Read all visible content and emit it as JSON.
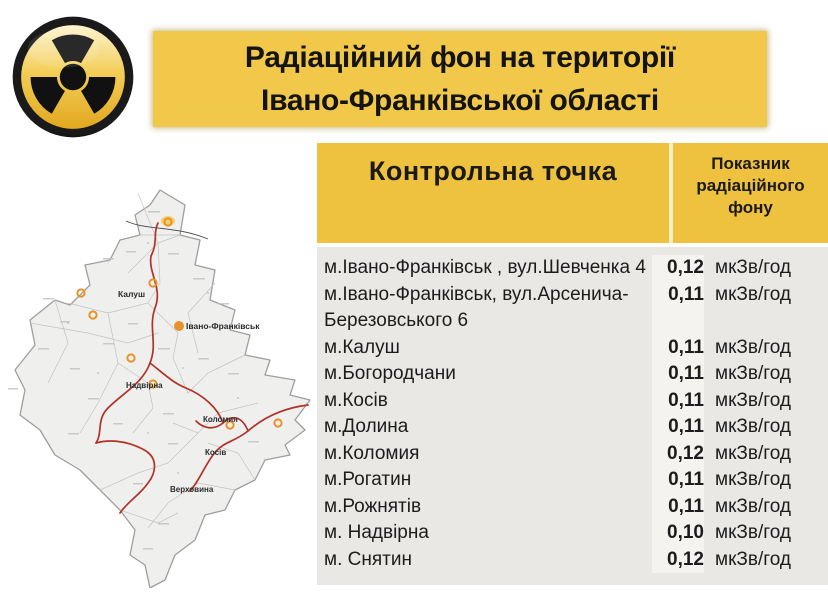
{
  "banner": {
    "title_line1": "Радіаційний фон на території",
    "title_line2": "Івано-Франківської області"
  },
  "icons": {
    "radiation": "radiation-trefoil-icon",
    "map_marker": "city-ring-marker"
  },
  "table": {
    "col1_header": "Контрольна точка",
    "col2_header": "Показник радіаційного фону",
    "rows": [
      {
        "point": "м.Івано-Франківськ , вул.Шевченка 4",
        "value": "0,12",
        "unit": "мкЗв/год"
      },
      {
        "point": "м.Івано-Франківськ, вул.Арсенича-Березовського 6",
        "value": "0,11",
        "unit": "мкЗв/год"
      },
      {
        "point": "м.Калуш",
        "value": "0,11",
        "unit": "мкЗв/год"
      },
      {
        "point": "м.Богородчани",
        "value": "0,11",
        "unit": "мкЗв/год"
      },
      {
        "point": "м.Косів",
        "value": "0,11",
        "unit": "мкЗв/год"
      },
      {
        "point": "м.Долина",
        "value": "0,11",
        "unit": "мкЗв/год"
      },
      {
        "point": "м.Коломия",
        "value": "0,12",
        "unit": "мкЗв/год"
      },
      {
        "point": "м.Рогатин",
        "value": "0,11",
        "unit": "мкЗв/год"
      },
      {
        "point": "м.Рожнятів",
        "value": "0,11",
        "unit": "мкЗв/год"
      },
      {
        "point": "м. Надвірна",
        "value": "0,10",
        "unit": "мкЗв/год"
      },
      {
        "point": "м. Снятин",
        "value": "0,12",
        "unit": "мкЗв/год"
      }
    ]
  },
  "map": {
    "city_labels": [
      "Калуш",
      "Івано-Франківськ",
      "Надвірна",
      "Коломия",
      "Косів",
      "Верховина"
    ]
  },
  "colors": {
    "banner_yellow": "#F1C84A",
    "table_header_yellow": "#EEC13E",
    "row_background": "#E9E8E5",
    "value_band": "#F4F3F0",
    "river_red": "#B03228",
    "marker_orange": "#E8922A"
  }
}
